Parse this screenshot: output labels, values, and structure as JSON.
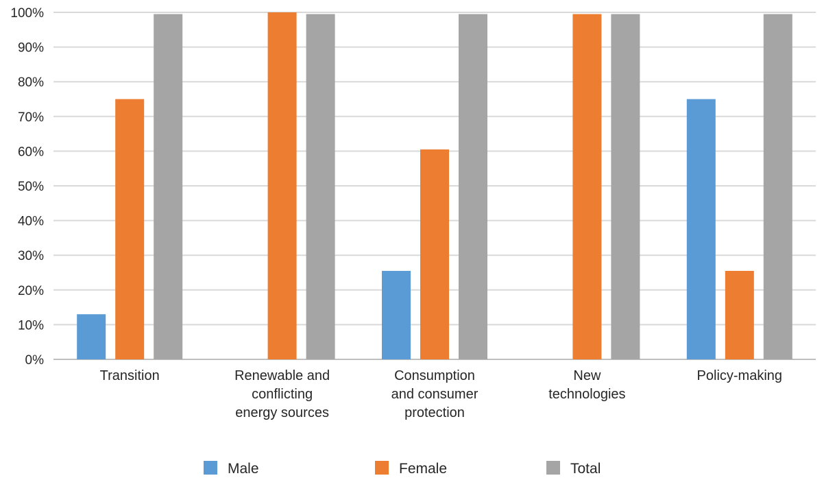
{
  "chart_data": {
    "type": "bar",
    "categories": [
      [
        "Transition"
      ],
      [
        "Renewable and",
        "conflicting",
        "energy sources"
      ],
      [
        "Consumption",
        "and consumer",
        "protection"
      ],
      [
        "New",
        "technologies"
      ],
      [
        "Policy-making"
      ]
    ],
    "series": [
      {
        "name": "Male",
        "color": "#5b9bd5",
        "values": [
          13,
          0,
          25.5,
          0,
          75
        ]
      },
      {
        "name": "Female",
        "color": "#ed7d31",
        "values": [
          75,
          100,
          60.5,
          99.5,
          25.5
        ]
      },
      {
        "name": "Total",
        "color": "#a5a5a5",
        "values": [
          99.5,
          99.5,
          99.5,
          99.5,
          99.5
        ]
      }
    ],
    "ylim": [
      0,
      100
    ],
    "yticks": [
      "0%",
      "10%",
      "20%",
      "30%",
      "40%",
      "50%",
      "60%",
      "70%",
      "80%",
      "90%",
      "100%"
    ],
    "grid": true,
    "legend_position": "bottom",
    "title": "",
    "xlabel": "",
    "ylabel": ""
  }
}
